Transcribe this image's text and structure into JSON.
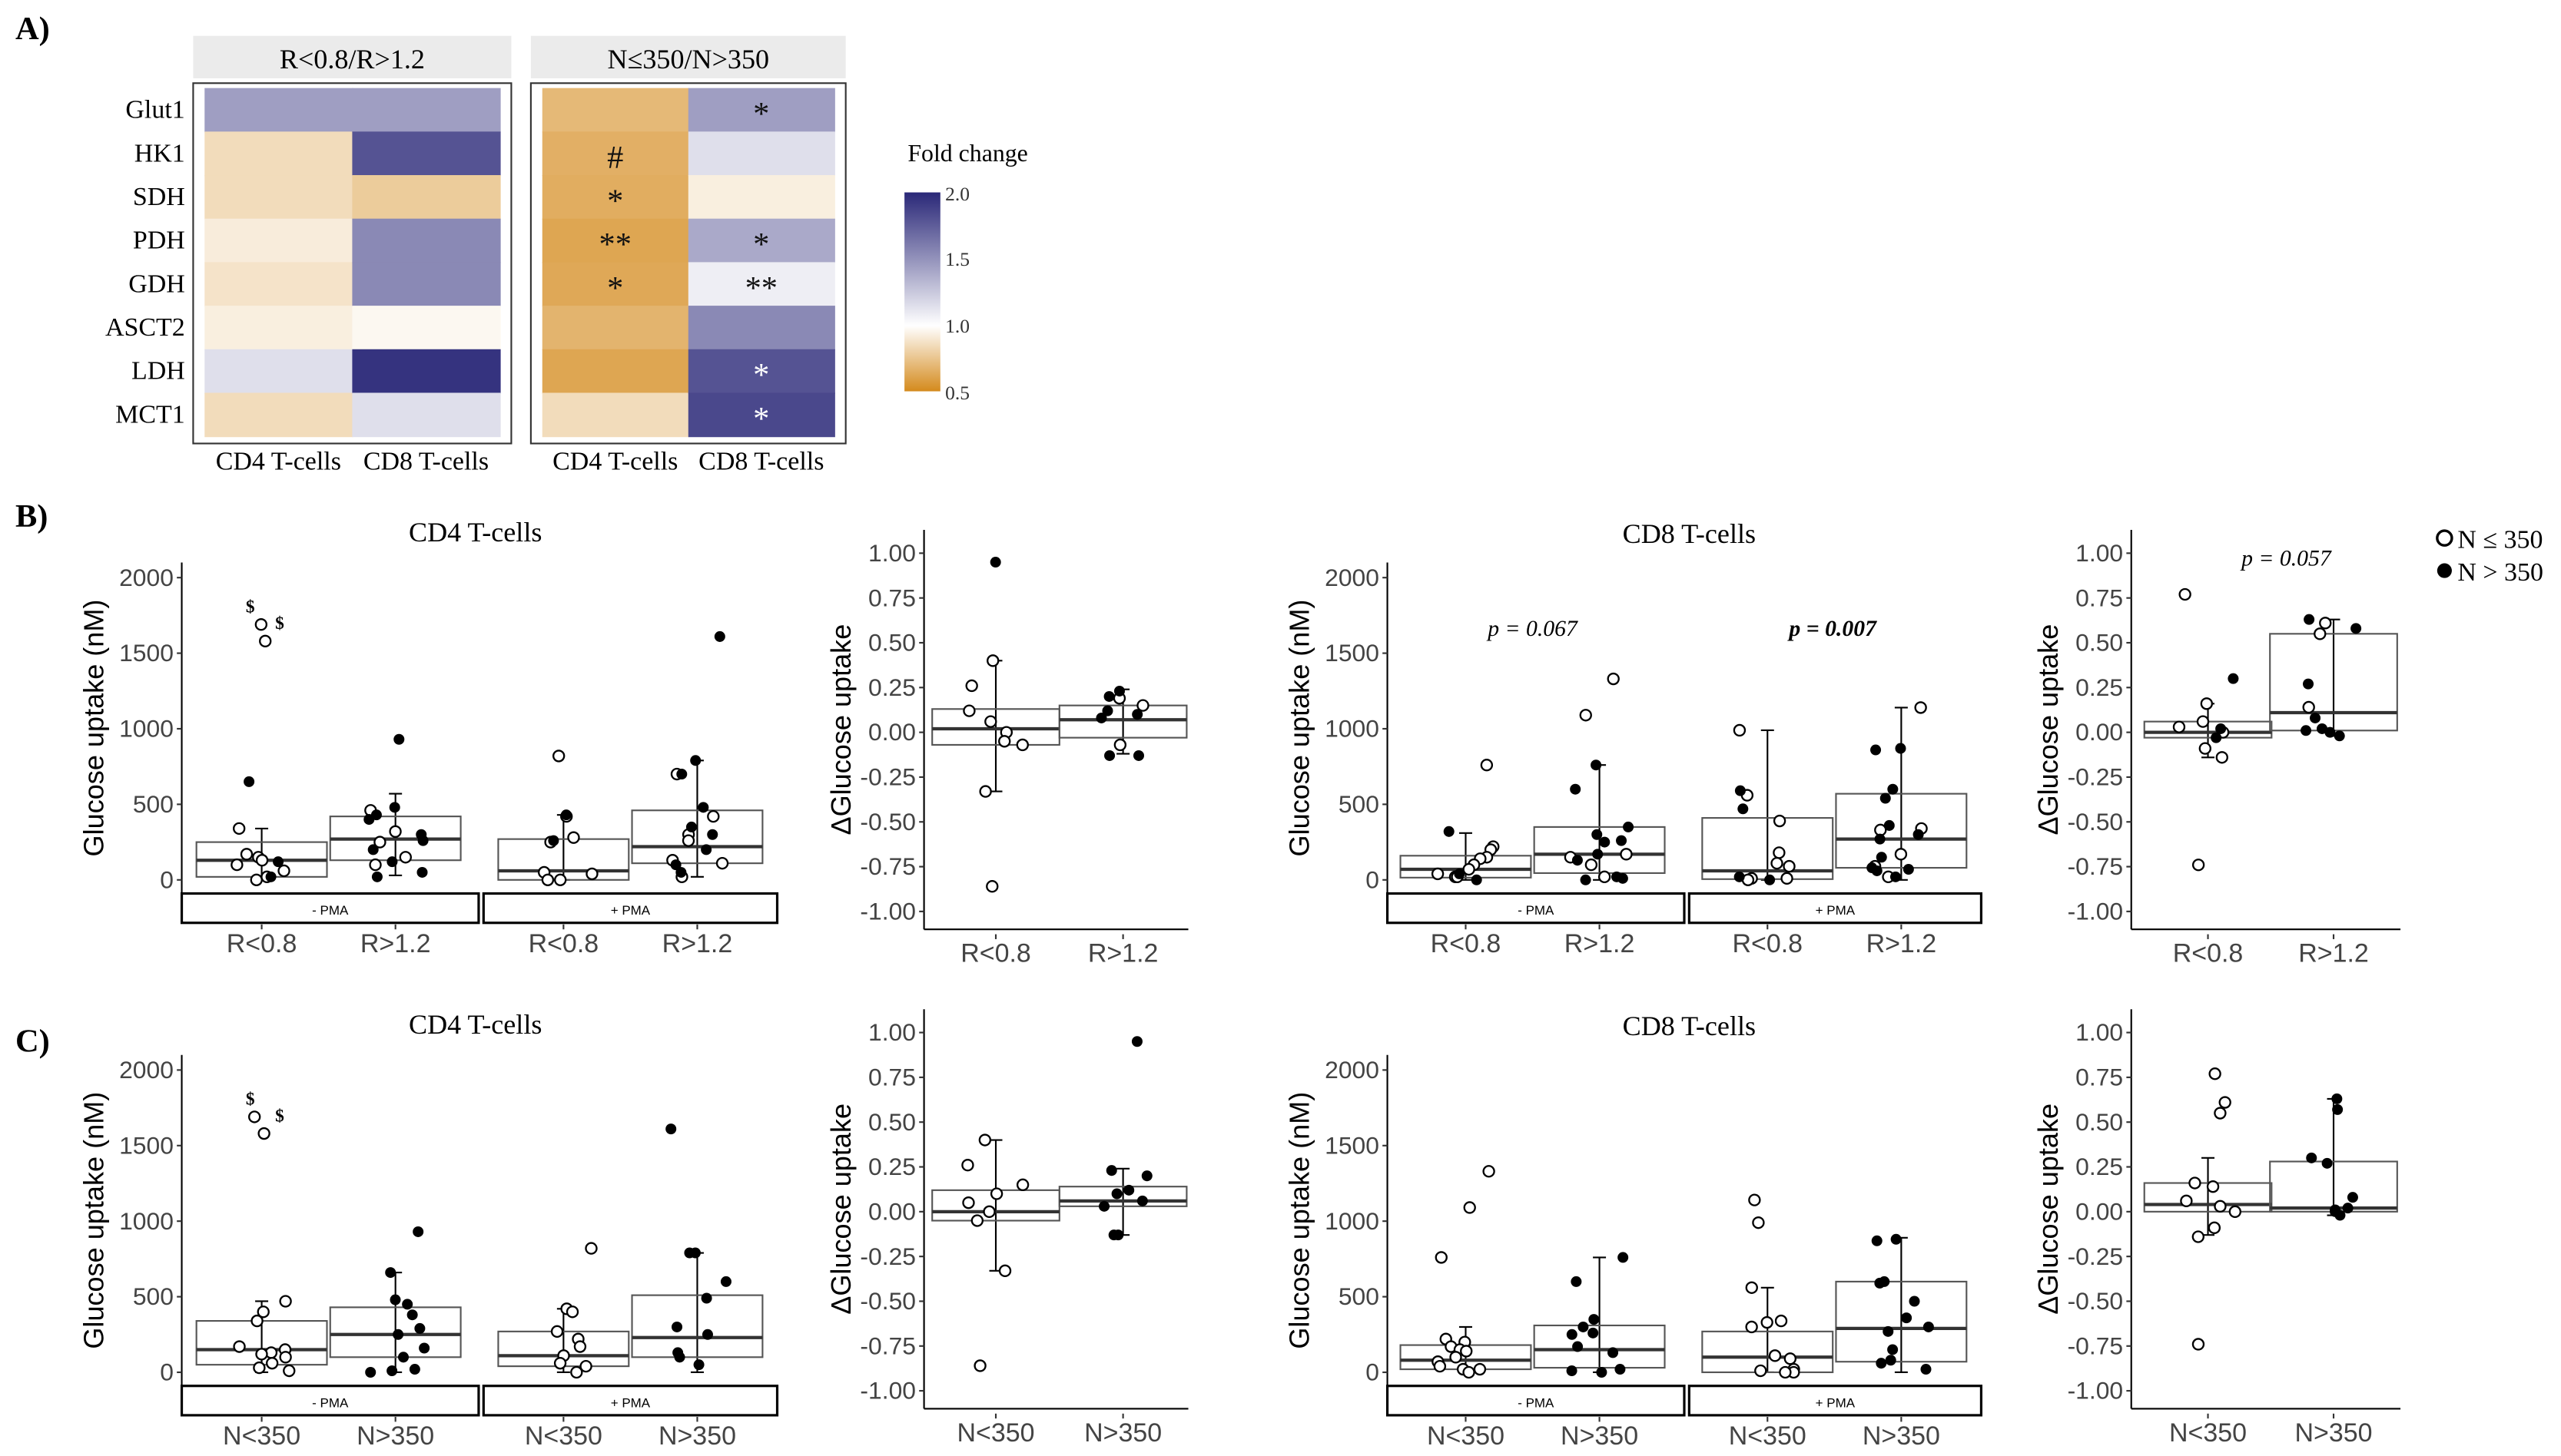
{
  "panel_labels": {
    "a": "A)",
    "b": "B)",
    "c": "C)"
  },
  "heatmap": {
    "facets": [
      "R<0.8/R>1.2",
      "N≤350/N>350"
    ],
    "rows": [
      "Glut1",
      "HK1",
      "SDH",
      "PDH",
      "GDH",
      "ASCT2",
      "LDH",
      "MCT1"
    ],
    "columns": [
      "CD4 T-cells",
      "CD8 T-cells"
    ],
    "values": [
      [
        [
          1.45,
          0.85,
          0.85,
          0.92,
          0.88,
          0.93,
          1.15,
          0.85
        ],
        [
          1.45,
          1.8,
          0.78,
          1.55,
          1.55,
          0.97,
          1.95,
          1.15
        ]
      ],
      [
        [
          0.7,
          0.66,
          0.65,
          0.62,
          0.63,
          0.68,
          0.62,
          0.85
        ],
        [
          1.45,
          1.15,
          0.93,
          1.4,
          1.08,
          1.55,
          1.8,
          1.85
        ]
      ]
    ],
    "annotations": [
      [
        [
          "",
          "",
          "",
          "",
          "",
          "",
          "",
          ""
        ],
        [
          "",
          "",
          "",
          "",
          "",
          "",
          "",
          ""
        ]
      ],
      [
        [
          "",
          "#",
          "*",
          "**",
          "*",
          "",
          "",
          ""
        ],
        [
          "*",
          "",
          "",
          "*",
          "**",
          "",
          "*",
          "*"
        ]
      ]
    ],
    "legend": {
      "title": "Fold change",
      "ticks": [
        "2.0",
        "1.5",
        "1.0",
        "0.5"
      ],
      "range": [
        0.5,
        2.0
      ]
    },
    "colors": {
      "low": "#d48a1c",
      "mid": "#ffffff",
      "high": "#2a2878"
    }
  },
  "legend": {
    "open": "N ≤ 350",
    "filled": "N > 350"
  },
  "chart_data": [
    {
      "type": "box",
      "id": "B-cd4",
      "title": "CD4 T-cells",
      "ylabel": "Glucose uptake (nM)",
      "ylim": [
        -90,
        2100
      ],
      "yticks": [
        "0",
        "500",
        "1000",
        "1500",
        "2000"
      ],
      "strips": [
        "- PMA",
        "+ PMA"
      ],
      "categories": [
        "R<0.8",
        "R>1.2",
        "R<0.8",
        "R>1.2"
      ],
      "annotations": [
        "$",
        "$"
      ],
      "pvalues": [],
      "groups": [
        {
          "stats": [
            0,
            20,
            130,
            250,
            340
          ],
          "open": [
            1690,
            1580,
            340,
            170,
            150,
            130,
            100,
            60,
            20,
            0
          ],
          "filled": [
            650,
            120,
            20
          ]
        },
        {
          "stats": [
            30,
            130,
            270,
            420,
            570
          ],
          "open": [
            460,
            320,
            250,
            150,
            100
          ],
          "filled": [
            930,
            480,
            430,
            400,
            300,
            260,
            200,
            120,
            50,
            20
          ]
        },
        {
          "stats": [
            0,
            0,
            60,
            270,
            430
          ],
          "open": [
            820,
            420,
            280,
            250,
            50,
            40,
            0,
            0
          ],
          "filled": [
            430,
            260
          ]
        },
        {
          "stats": [
            20,
            110,
            220,
            460,
            790
          ],
          "open": [
            700,
            420,
            300,
            260,
            130,
            110,
            20
          ],
          "filled": [
            1610,
            790,
            700,
            480,
            350,
            300,
            200,
            100,
            50
          ]
        }
      ]
    },
    {
      "type": "box",
      "id": "B-cd4-delta",
      "title": "",
      "ylabel": "ΔGlucose uptake",
      "ylim": [
        -1.1,
        1.13
      ],
      "yticks": [
        "-1.00",
        "-0.75",
        "-0.50",
        "-0.25",
        "0.00",
        "0.25",
        "0.50",
        "0.75",
        "1.00"
      ],
      "strips": [],
      "categories": [
        "R<0.8",
        "R>1.2"
      ],
      "annotations": [],
      "pvalues": [],
      "groups": [
        {
          "stats": [
            -0.33,
            -0.07,
            0.02,
            0.13,
            0.4
          ],
          "open": [
            0.4,
            0.26,
            0.12,
            0.06,
            0.0,
            -0.05,
            -0.07,
            -0.33,
            -0.86
          ],
          "filled": [
            0.95
          ]
        },
        {
          "stats": [
            -0.12,
            -0.03,
            0.07,
            0.15,
            0.24
          ],
          "open": [
            0.19,
            0.15,
            -0.07
          ],
          "filled": [
            0.23,
            0.2,
            0.12,
            0.1,
            0.08,
            -0.13,
            -0.13
          ]
        }
      ]
    },
    {
      "type": "box",
      "id": "B-cd8",
      "title": "CD8 T-cells",
      "ylabel": "Glucose uptake (nM)",
      "ylim": [
        -90,
        2100
      ],
      "yticks": [
        "0",
        "500",
        "1000",
        "1500",
        "2000"
      ],
      "strips": [
        "- PMA",
        "+ PMA"
      ],
      "categories": [
        "R<0.8",
        "R>1.2",
        "R<0.8",
        "R>1.2"
      ],
      "annotations": [],
      "pvalues": [
        {
          "label": "p = 0.067",
          "bold": false
        },
        {
          "label": "p = 0.007",
          "bold": true
        }
      ],
      "groups": [
        {
          "stats": [
            0,
            15,
            70,
            160,
            310
          ],
          "open": [
            760,
            220,
            200,
            150,
            140,
            100,
            70,
            40,
            20,
            20
          ],
          "filled": [
            320,
            40,
            0
          ]
        },
        {
          "stats": [
            0,
            45,
            170,
            350,
            760
          ],
          "open": [
            1330,
            1090,
            170,
            150,
            100,
            20
          ],
          "filled": [
            760,
            600,
            350,
            300,
            260,
            250,
            170,
            130,
            20,
            10,
            0
          ]
        },
        {
          "stats": [
            0,
            5,
            60,
            410,
            990
          ],
          "open": [
            990,
            560,
            390,
            180,
            110,
            90,
            10,
            10,
            0
          ],
          "filled": [
            590,
            470,
            20,
            0
          ]
        },
        {
          "stats": [
            0,
            80,
            270,
            570,
            1140
          ],
          "open": [
            1140,
            340,
            330,
            170,
            90,
            20
          ],
          "filled": [
            870,
            860,
            600,
            540,
            360,
            300,
            270,
            150,
            80,
            70,
            60,
            20
          ]
        }
      ]
    },
    {
      "type": "box",
      "id": "B-cd8-delta",
      "title": "",
      "ylabel": "ΔGlucose uptake",
      "ylim": [
        -1.1,
        1.13
      ],
      "yticks": [
        "-1.00",
        "-0.75",
        "-0.50",
        "-0.25",
        "0.00",
        "0.25",
        "0.50",
        "0.75",
        "1.00"
      ],
      "strips": [],
      "categories": [
        "R<0.8",
        "R>1.2"
      ],
      "annotations": [],
      "pvalues": [
        {
          "label": "p = 0.057",
          "bold": false
        }
      ],
      "groups": [
        {
          "stats": [
            -0.14,
            -0.03,
            0.0,
            0.06,
            0.16
          ],
          "open": [
            0.77,
            0.16,
            0.06,
            0.03,
            0.0,
            -0.09,
            -0.14,
            -0.74
          ],
          "filled": [
            0.3,
            0.02,
            -0.03
          ]
        },
        {
          "stats": [
            -0.02,
            0.01,
            0.11,
            0.55,
            0.63
          ],
          "open": [
            0.55,
            0.61,
            0.14
          ],
          "filled": [
            0.58,
            0.63,
            0.27,
            0.08,
            0.02,
            0.01,
            -0.02,
            0.0
          ]
        }
      ]
    },
    {
      "type": "box",
      "id": "C-cd4",
      "title": "CD4 T-cells",
      "ylabel": "Glucose uptake (nM)",
      "ylim": [
        -90,
        2100
      ],
      "yticks": [
        "0",
        "500",
        "1000",
        "1500",
        "2000"
      ],
      "strips": [
        "- PMA",
        "+ PMA"
      ],
      "categories": [
        "N<350",
        "N>350",
        "N<350",
        "N>350"
      ],
      "annotations": [
        "$",
        "$"
      ],
      "pvalues": [],
      "groups": [
        {
          "stats": [
            0,
            50,
            150,
            340,
            470
          ],
          "open": [
            1690,
            1580,
            470,
            400,
            340,
            170,
            150,
            130,
            120,
            100,
            60,
            30,
            10
          ],
          "filled": []
        },
        {
          "stats": [
            0,
            100,
            250,
            430,
            660
          ],
          "open": [],
          "filled": [
            930,
            660,
            480,
            450,
            380,
            290,
            250,
            160,
            100,
            20,
            10,
            0
          ]
        },
        {
          "stats": [
            0,
            40,
            110,
            270,
            420
          ],
          "open": [
            820,
            420,
            400,
            270,
            220,
            170,
            110,
            60,
            40,
            0
          ],
          "filled": []
        },
        {
          "stats": [
            0,
            100,
            230,
            510,
            790
          ],
          "open": [],
          "filled": [
            1610,
            790,
            790,
            600,
            490,
            300,
            250,
            130,
            100,
            50
          ]
        }
      ]
    },
    {
      "type": "box",
      "id": "C-cd4-delta",
      "title": "",
      "ylabel": "ΔGlucose uptake",
      "ylim": [
        -1.1,
        1.13
      ],
      "yticks": [
        "-1.00",
        "-0.75",
        "-0.50",
        "-0.25",
        "0.00",
        "0.25",
        "0.50",
        "0.75",
        "1.00"
      ],
      "strips": [],
      "categories": [
        "N<350",
        "N>350"
      ],
      "annotations": [],
      "pvalues": [],
      "groups": [
        {
          "stats": [
            -0.33,
            -0.05,
            0.0,
            0.12,
            0.4
          ],
          "open": [
            0.4,
            0.26,
            0.15,
            0.1,
            0.05,
            0.0,
            -0.05,
            -0.33,
            -0.86
          ],
          "filled": []
        },
        {
          "stats": [
            -0.13,
            0.03,
            0.06,
            0.14,
            0.24
          ],
          "open": [],
          "filled": [
            0.95,
            0.23,
            0.2,
            0.12,
            0.1,
            0.06,
            0.03,
            -0.13,
            -0.13
          ]
        }
      ]
    },
    {
      "type": "box",
      "id": "C-cd8",
      "title": "CD8 T-cells",
      "ylabel": "Glucose uptake (nM)",
      "ylim": [
        -90,
        2100
      ],
      "yticks": [
        "0",
        "500",
        "1000",
        "1500",
        "2000"
      ],
      "strips": [
        "- PMA",
        "+ PMA"
      ],
      "categories": [
        "N<350",
        "N>350",
        "N<350",
        "N>350"
      ],
      "annotations": [],
      "pvalues": [],
      "groups": [
        {
          "stats": [
            0,
            20,
            80,
            180,
            300
          ],
          "open": [
            1330,
            1090,
            760,
            220,
            200,
            170,
            150,
            140,
            100,
            70,
            40,
            20,
            20,
            0
          ],
          "filled": []
        },
        {
          "stats": [
            0,
            30,
            150,
            310,
            760
          ],
          "open": [],
          "filled": [
            760,
            600,
            350,
            300,
            260,
            250,
            170,
            130,
            20,
            10,
            0
          ]
        },
        {
          "stats": [
            0,
            0,
            100,
            270,
            560
          ],
          "open": [
            1140,
            990,
            560,
            340,
            330,
            300,
            110,
            90,
            20,
            10,
            0,
            0
          ],
          "filled": []
        },
        {
          "stats": [
            0,
            70,
            290,
            600,
            890
          ],
          "open": [],
          "filled": [
            880,
            870,
            600,
            590,
            470,
            360,
            300,
            270,
            150,
            80,
            60,
            20
          ]
        }
      ]
    },
    {
      "type": "box",
      "id": "C-cd8-delta",
      "title": "",
      "ylabel": "ΔGlucose uptake",
      "ylim": [
        -1.1,
        1.13
      ],
      "yticks": [
        "-1.00",
        "-0.75",
        "-0.50",
        "-0.25",
        "0.00",
        "0.25",
        "0.50",
        "0.75",
        "1.00"
      ],
      "strips": [],
      "categories": [
        "N<350",
        "N>350"
      ],
      "annotations": [],
      "pvalues": [],
      "groups": [
        {
          "stats": [
            -0.13,
            0.0,
            0.04,
            0.16,
            0.3
          ],
          "open": [
            0.77,
            0.61,
            0.55,
            0.16,
            0.14,
            0.06,
            0.03,
            0.0,
            -0.09,
            -0.14,
            -0.74
          ],
          "filled": []
        },
        {
          "stats": [
            -0.02,
            0.0,
            0.02,
            0.28,
            0.63
          ],
          "open": [],
          "filled": [
            0.63,
            0.57,
            0.3,
            0.27,
            0.08,
            0.02,
            0.01,
            0.0,
            -0.02
          ]
        }
      ]
    }
  ]
}
